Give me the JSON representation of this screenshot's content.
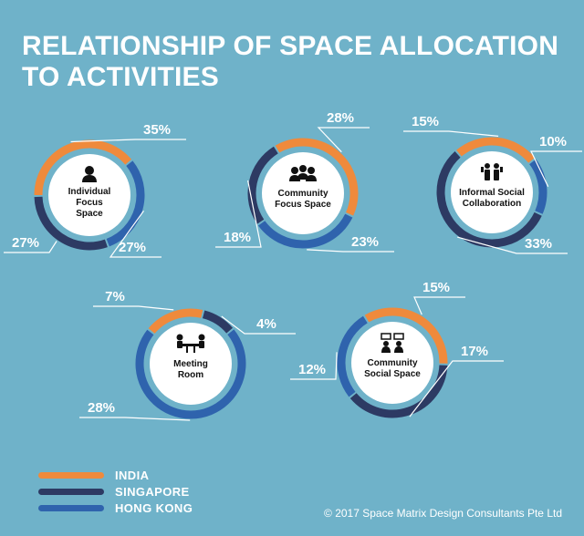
{
  "title_lines": [
    "RELATIONSHIP OF SPACE ALLOCATION",
    "TO ACTIVITIES"
  ],
  "colors": {
    "background": "#6fb2c9",
    "india": "#ef8a3c",
    "singapore": "#2d3a63",
    "hong_kong": "#2f63ad",
    "ring_gap": "#6fb2c9",
    "center": "#ffffff",
    "text_dark": "#111111",
    "text_white": "#ffffff"
  },
  "legend": [
    {
      "name": "INDIA",
      "color_key": "india"
    },
    {
      "name": "SINGAPORE",
      "color_key": "singapore"
    },
    {
      "name": "HONG KONG",
      "color_key": "hong_kong"
    }
  ],
  "copyright": "© 2017 Space Matrix Design Consultants Pte Ltd",
  "chart_data": {
    "type": "pie",
    "series_names": [
      "INDIA",
      "SINGAPORE",
      "HONG KONG"
    ],
    "charts": [
      {
        "label_lines": [
          "Individual",
          "Focus",
          "Space"
        ],
        "icon": "person-icon",
        "values": {
          "INDIA": 35,
          "SINGAPORE": 27,
          "HONG KONG": 27
        },
        "labels": {
          "INDIA": "35%",
          "SINGAPORE": "27%",
          "HONG KONG": "27%"
        }
      },
      {
        "label_lines": [
          "Community",
          "Focus Space"
        ],
        "icon": "group-icon",
        "values": {
          "INDIA": 28,
          "SINGAPORE": 18,
          "HONG KONG": 23
        },
        "labels": {
          "INDIA": "28%",
          "SINGAPORE": "18%",
          "HONG KONG": "23%"
        }
      },
      {
        "label_lines": [
          "Informal Social",
          "Collaboration"
        ],
        "icon": "two-people-icon",
        "values": {
          "INDIA": 15,
          "SINGAPORE": 33,
          "HONG KONG": 10
        },
        "labels": {
          "INDIA": "15%",
          "SINGAPORE": "33%",
          "HONG KONG": "10%"
        }
      },
      {
        "label_lines": [
          "Meeting",
          "Room"
        ],
        "icon": "meeting-icon",
        "values": {
          "INDIA": 7,
          "SINGAPORE": 4,
          "HONG KONG": 28
        },
        "labels": {
          "INDIA": "7%",
          "SINGAPORE": "4%",
          "HONG KONG": "28%"
        }
      },
      {
        "label_lines": [
          "Community",
          "Social Space"
        ],
        "icon": "chat-icon",
        "values": {
          "INDIA": 15,
          "SINGAPORE": 17,
          "HONG KONG": 12
        },
        "labels": {
          "INDIA": "15%",
          "SINGAPORE": "17%",
          "HONG KONG": "12%"
        }
      }
    ]
  }
}
